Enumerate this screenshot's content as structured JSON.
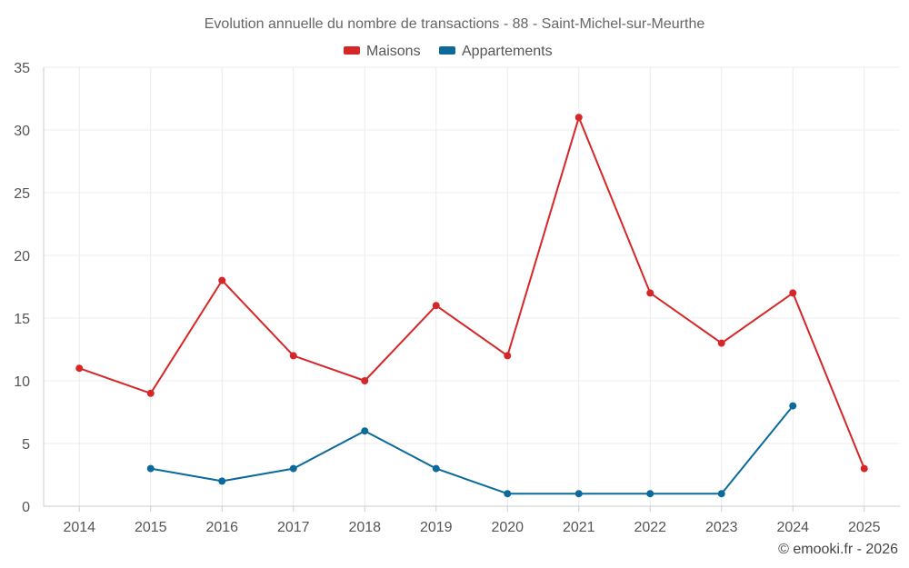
{
  "chart_data": {
    "type": "line",
    "title": "Evolution annuelle du nombre de transactions - 88 - Saint-Michel-sur-Meurthe",
    "categories": [
      "2014",
      "2015",
      "2016",
      "2017",
      "2018",
      "2019",
      "2020",
      "2021",
      "2022",
      "2023",
      "2024",
      "2025"
    ],
    "series": [
      {
        "name": "Maisons",
        "color": "#d62728",
        "values": [
          11,
          9,
          18,
          12,
          10,
          16,
          12,
          31,
          17,
          13,
          17,
          3
        ]
      },
      {
        "name": "Appartements",
        "color": "#0b6a9b",
        "values": [
          null,
          3,
          2,
          3,
          6,
          3,
          1,
          1,
          1,
          1,
          8,
          null
        ]
      }
    ],
    "ylim": [
      0,
      35
    ],
    "yticks": [
      0,
      5,
      10,
      15,
      20,
      25,
      30,
      35
    ],
    "grid": true,
    "legend": "top-center",
    "xlabel": "",
    "ylabel": "",
    "credit": "© emooki.fr - 2026"
  }
}
